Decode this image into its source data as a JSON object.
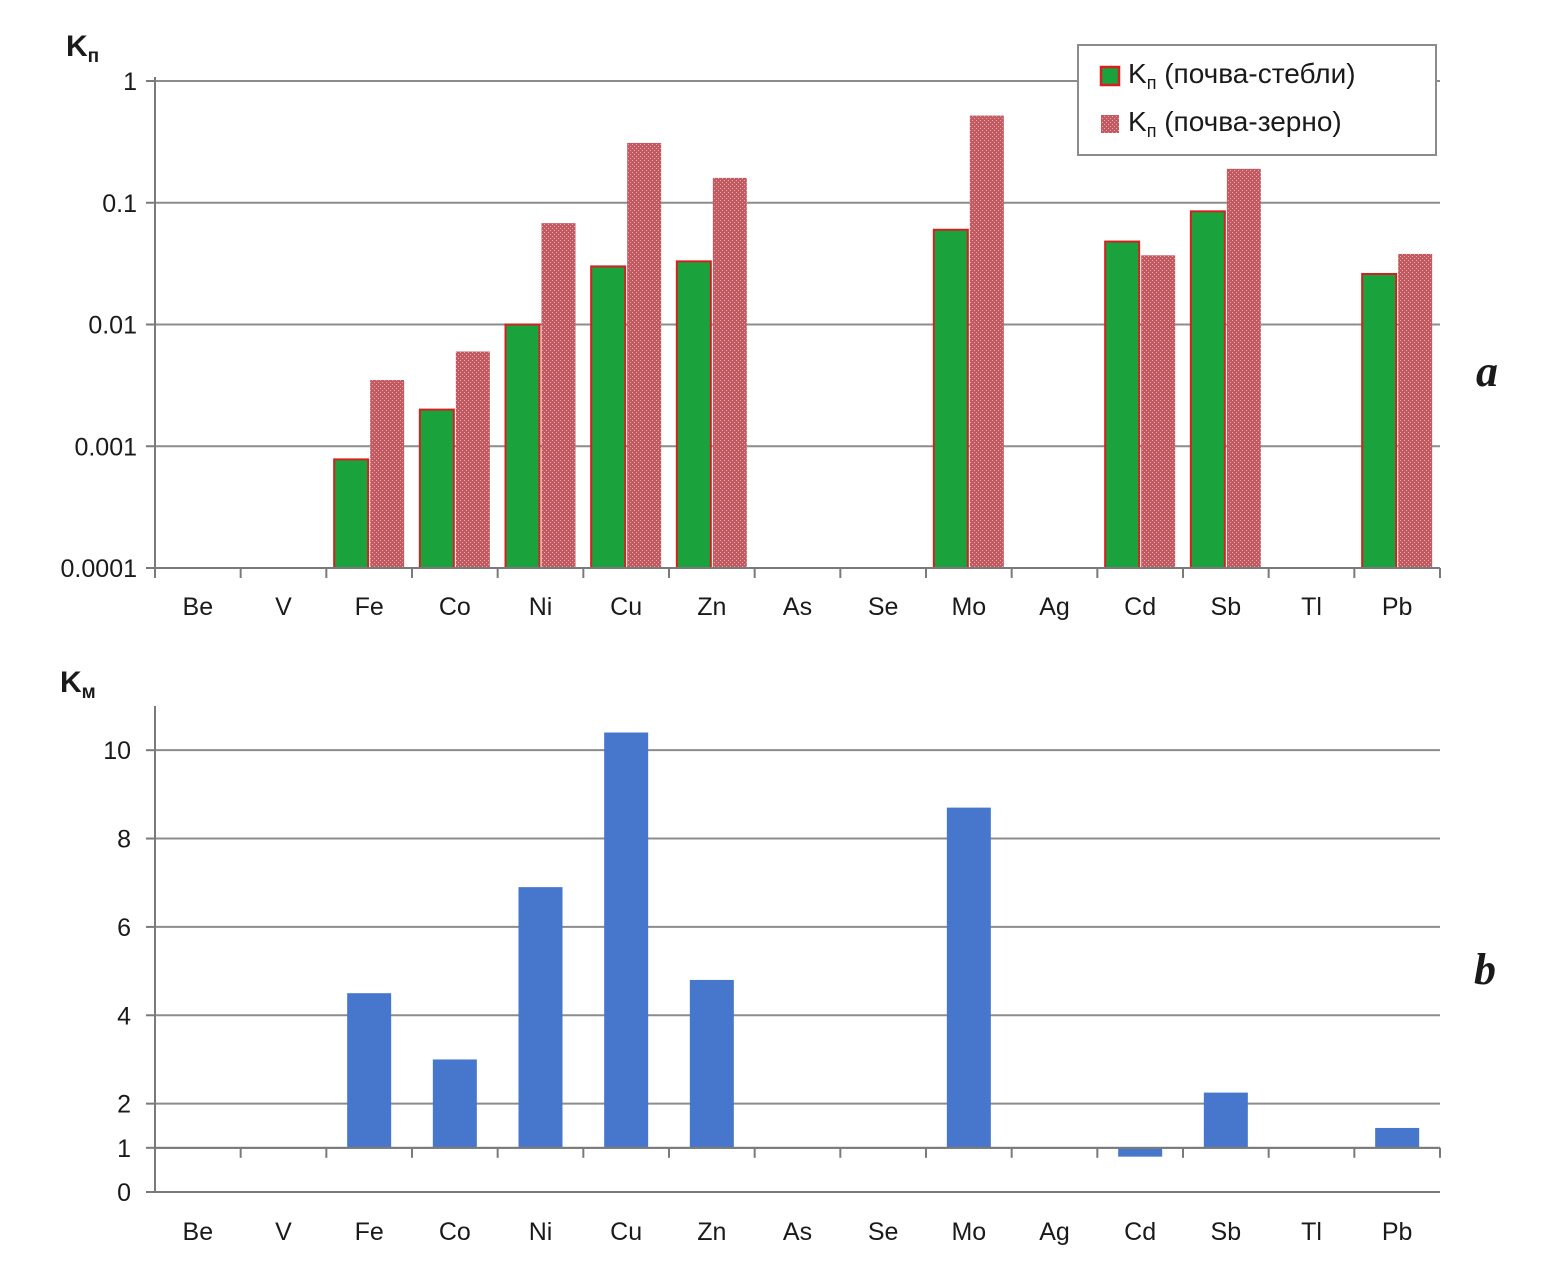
{
  "chart_data": [
    {
      "panel": "a",
      "type": "bar",
      "scale": "log",
      "ylabel": "K",
      "ylabel_sub": "п",
      "ylim": [
        0.0001,
        1
      ],
      "yticks": [
        "0.0001",
        "0.001",
        "0.01",
        "0.1",
        "1"
      ],
      "grid": true,
      "legend_position": "top-right",
      "categories": [
        "Be",
        "V",
        "Fe",
        "Co",
        "Ni",
        "Cu",
        "Zn",
        "As",
        "Se",
        "Mo",
        "Ag",
        "Cd",
        "Sb",
        "Tl",
        "Pb"
      ],
      "series": [
        {
          "name": "K",
          "name_sub": "п",
          "name_rest": " (почва-стебли)",
          "color": "#1aa33c",
          "edge": "#d42020",
          "values": [
            null,
            null,
            0.00078,
            0.002,
            0.01,
            0.03,
            0.033,
            null,
            null,
            0.06,
            null,
            0.048,
            0.085,
            null,
            0.026
          ]
        },
        {
          "name": "K",
          "name_sub": "п",
          "name_rest": " (почва-зерно)",
          "color": "#c25a62",
          "edge": "#c25a62",
          "values": [
            null,
            null,
            0.0035,
            0.006,
            0.068,
            0.31,
            0.16,
            null,
            null,
            0.52,
            null,
            0.037,
            0.19,
            null,
            0.038
          ]
        }
      ]
    },
    {
      "panel": "b",
      "type": "bar",
      "scale": "linear",
      "ylabel": "K",
      "ylabel_sub": "м",
      "ylim": [
        0,
        11
      ],
      "baseline": 1,
      "yticks": [
        "0",
        "1",
        "2",
        "4",
        "6",
        "8",
        "10"
      ],
      "grid": true,
      "categories": [
        "Be",
        "V",
        "Fe",
        "Co",
        "Ni",
        "Cu",
        "Zn",
        "As",
        "Se",
        "Mo",
        "Ag",
        "Cd",
        "Sb",
        "Tl",
        "Pb"
      ],
      "series": [
        {
          "color": "#4677cc",
          "values": [
            null,
            null,
            4.5,
            3.0,
            6.9,
            10.4,
            4.8,
            null,
            null,
            8.7,
            null,
            0.8,
            2.25,
            null,
            1.45
          ]
        }
      ]
    }
  ]
}
